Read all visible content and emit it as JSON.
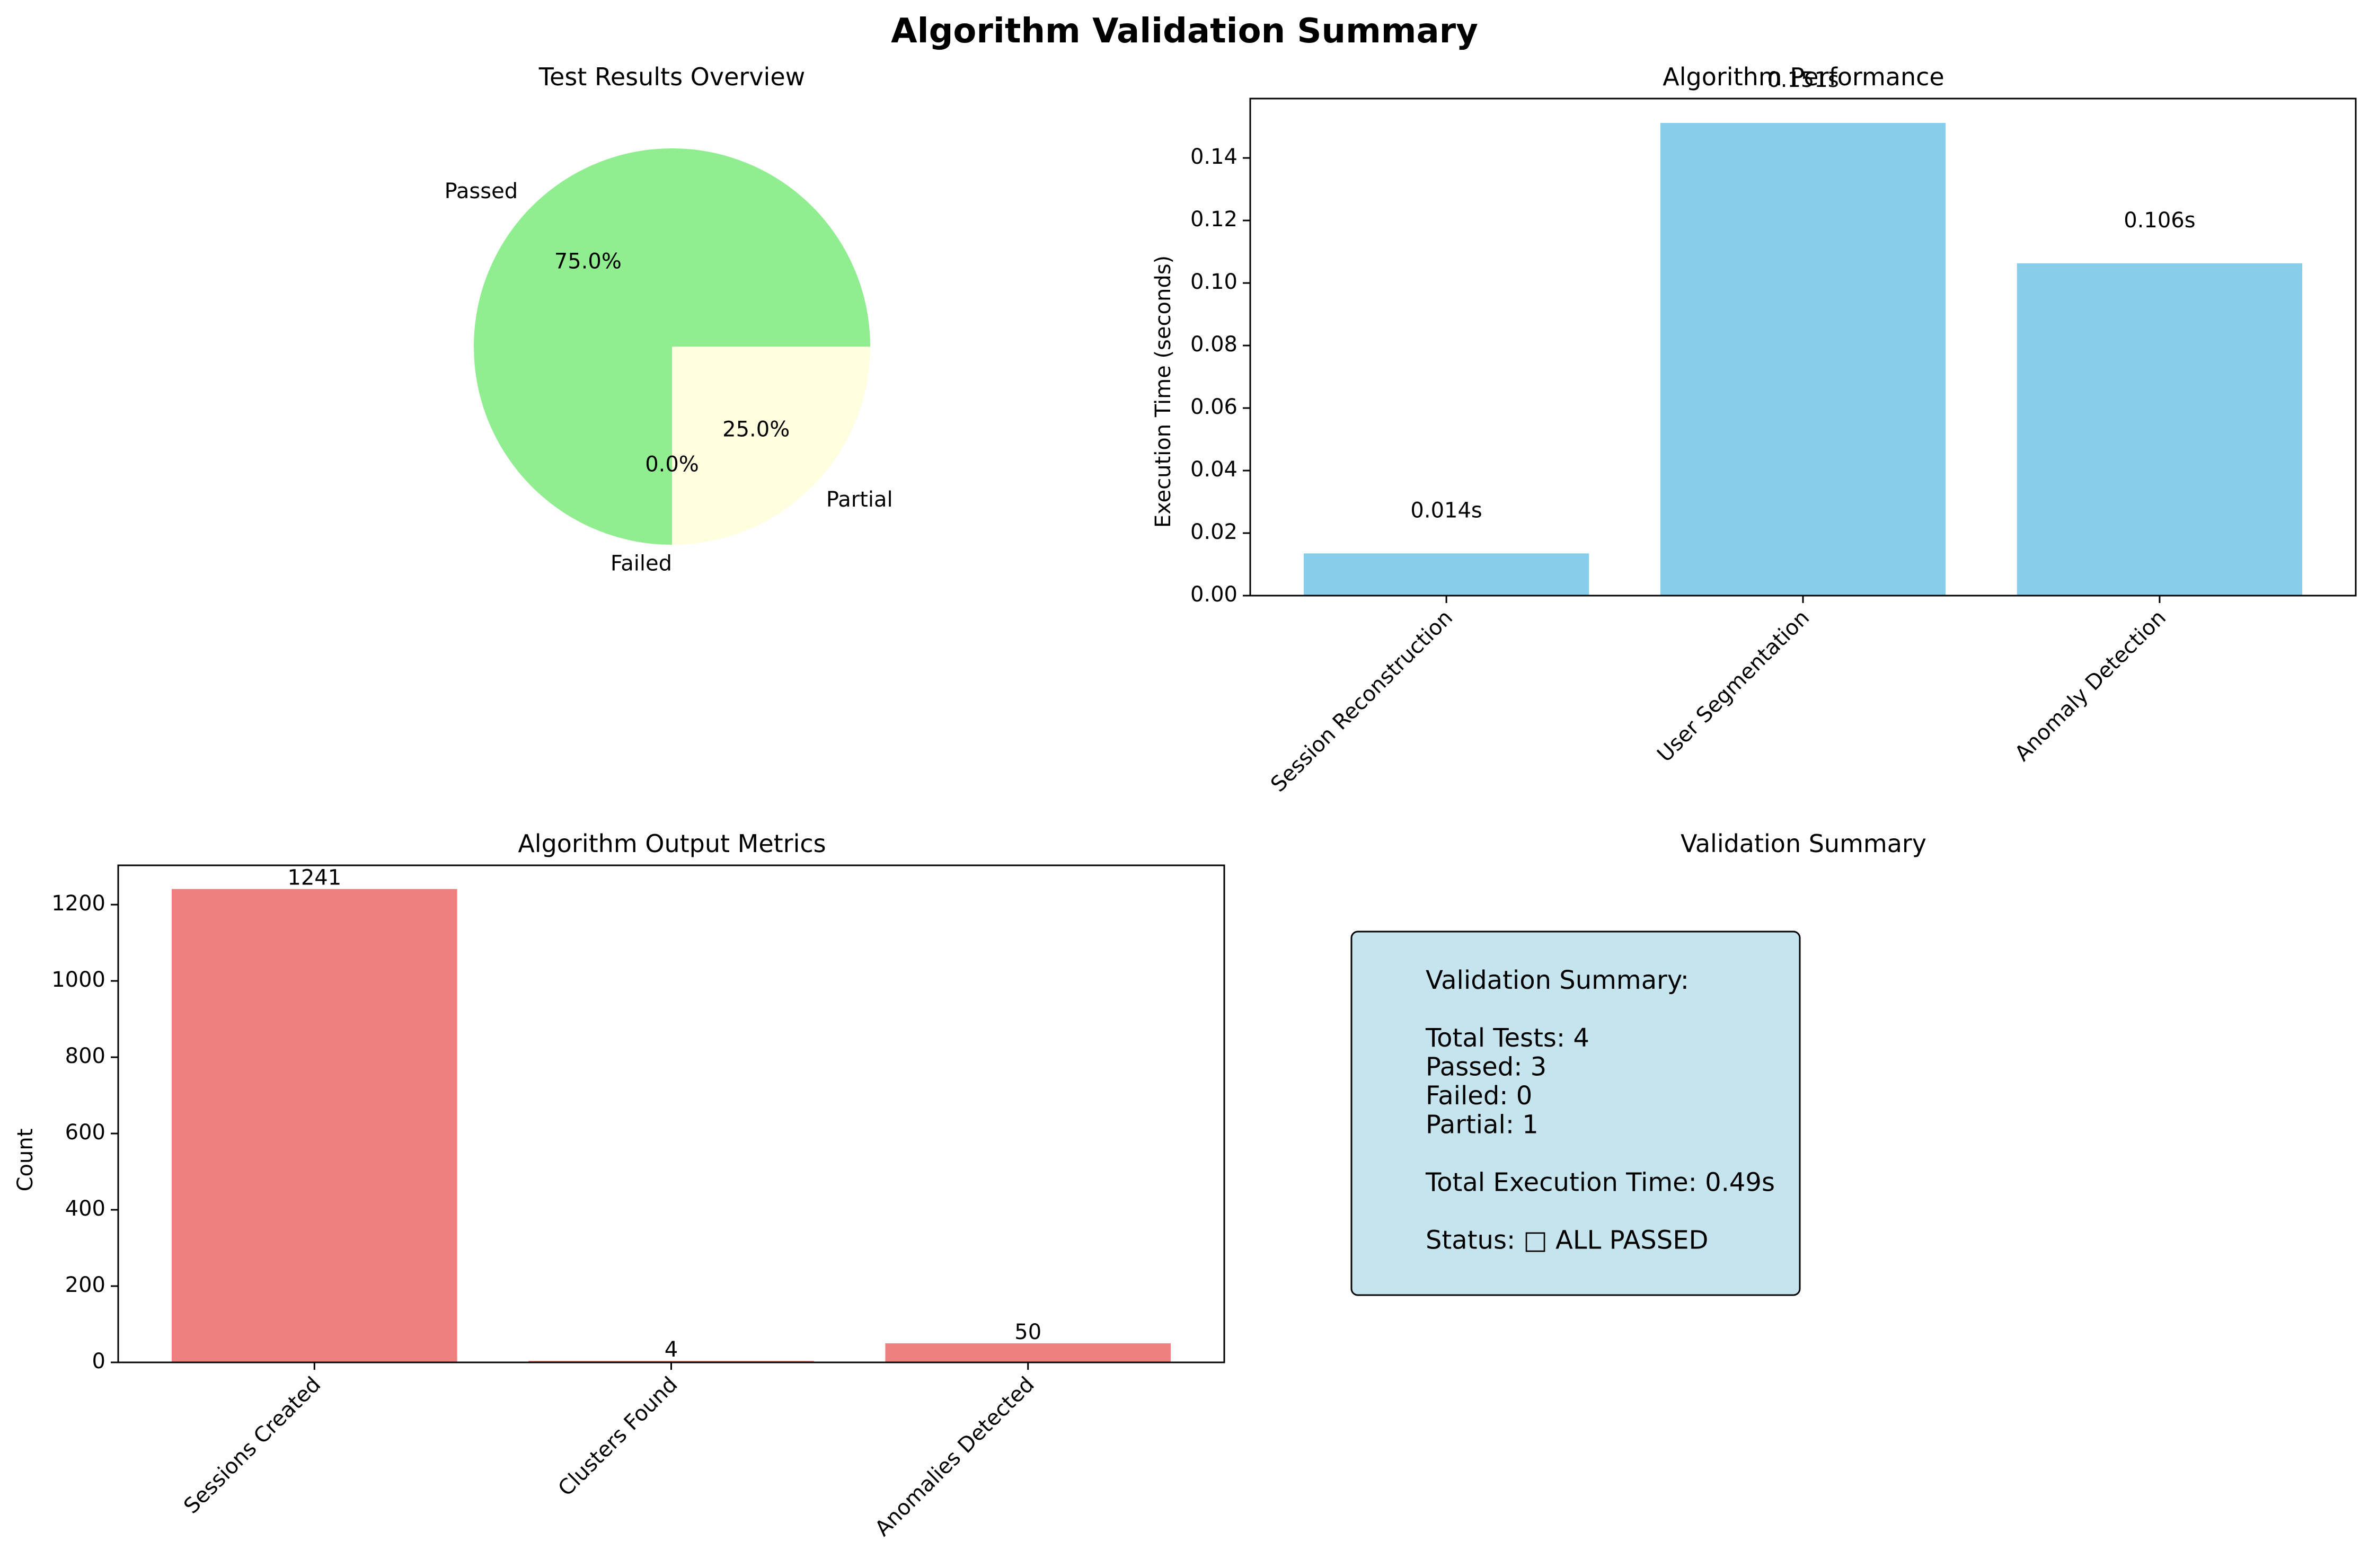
{
  "figure": {
    "suptitle": "Algorithm Validation Summary"
  },
  "chart_data": [
    {
      "type": "pie",
      "title": "Test Results Overview",
      "slices": [
        {
          "label": "Passed",
          "value": 75.0,
          "pct_text": "75.0%",
          "color": "#90EE90"
        },
        {
          "label": "Failed",
          "value": 0.0,
          "pct_text": "0.0%",
          "color": "#F08080"
        },
        {
          "label": "Partial",
          "value": 25.0,
          "pct_text": "25.0%",
          "color": "#FFFFE0"
        }
      ]
    },
    {
      "type": "bar",
      "title": "Algorithm Performance",
      "categories": [
        "Session Reconstruction",
        "User Segmentation",
        "Anomaly Detection"
      ],
      "values": [
        0.0135,
        0.1512,
        0.1063
      ],
      "value_labels": [
        "0.014s",
        "0.151s",
        "0.106s"
      ],
      "ylabel": "Execution Time (seconds)",
      "xlabel": "",
      "ylim": [
        0,
        0.159
      ],
      "yticks": [
        0.0,
        0.02,
        0.04,
        0.06,
        0.08,
        0.1,
        0.12,
        0.14
      ],
      "ytick_labels": [
        "0.00",
        "0.02",
        "0.04",
        "0.06",
        "0.08",
        "0.10",
        "0.12",
        "0.14"
      ],
      "color": "#87CEEB",
      "grid": false
    },
    {
      "type": "bar",
      "title": "Algorithm Output Metrics",
      "categories": [
        "Sessions Created",
        "Clusters Found",
        "Anomalies Detected"
      ],
      "values": [
        1241,
        4,
        50
      ],
      "value_labels": [
        "1241",
        "4",
        "50"
      ],
      "ylabel": "Count",
      "xlabel": "",
      "ylim": [
        0,
        1303
      ],
      "yticks": [
        0,
        200,
        400,
        600,
        800,
        1000,
        1200
      ],
      "ytick_labels": [
        "0",
        "200",
        "400",
        "600",
        "800",
        "1000",
        "1200"
      ],
      "color": "#F08080",
      "grid": false
    }
  ],
  "summary": {
    "title": "Validation Summary",
    "box_color": "#ADD8E6",
    "lines": [
      "Validation Summary:",
      "",
      "Total Tests: 4",
      "Passed: 3",
      "Failed: 0",
      "Partial: 1",
      "",
      "Total Execution Time: 0.49s",
      "",
      "Status: □ ALL PASSED"
    ]
  }
}
